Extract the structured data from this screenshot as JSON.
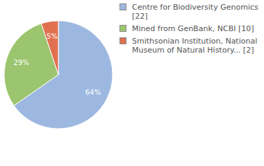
{
  "chart_data": {
    "type": "pie",
    "categories": [
      "Centre for Biodiversity Genomics [22]",
      "Mined from GenBank, NCBI [10]",
      "Smithsonian Institution, National Museum of Natural History... [2]"
    ],
    "values": [
      64,
      29,
      5
    ],
    "value_labels": [
      "64%",
      "29%",
      "5%"
    ],
    "colors": [
      "#9db8e0",
      "#9bc56e",
      "#e07050"
    ],
    "data_labels": true,
    "legend": "right"
  }
}
